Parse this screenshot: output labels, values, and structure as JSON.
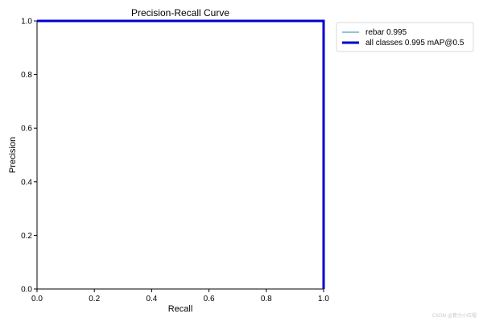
{
  "chart_data": {
    "type": "line",
    "title": "Precision-Recall Curve",
    "xlabel": "Recall",
    "ylabel": "Precision",
    "xlim": [
      0.0,
      1.0
    ],
    "ylim": [
      0.0,
      1.0
    ],
    "xticks": [
      "0.0",
      "0.2",
      "0.4",
      "0.6",
      "0.8",
      "1.0"
    ],
    "yticks": [
      "0.0",
      "0.2",
      "0.4",
      "0.6",
      "0.8",
      "1.0"
    ],
    "grid": false,
    "legend_position": "outside upper right",
    "series": [
      {
        "name": "rebar 0.995",
        "color": "#6baed6",
        "x": [
          0.0,
          0.995,
          1.0,
          1.0
        ],
        "y": [
          1.0,
          1.0,
          1.0,
          0.0
        ]
      },
      {
        "name": "all classes 0.995 mAP@0.5",
        "color": "#0000cd",
        "x": [
          0.0,
          0.995,
          1.0,
          1.0
        ],
        "y": [
          1.0,
          1.0,
          1.0,
          0.0
        ]
      }
    ]
  },
  "watermark": "CSDN @算力小红帽"
}
